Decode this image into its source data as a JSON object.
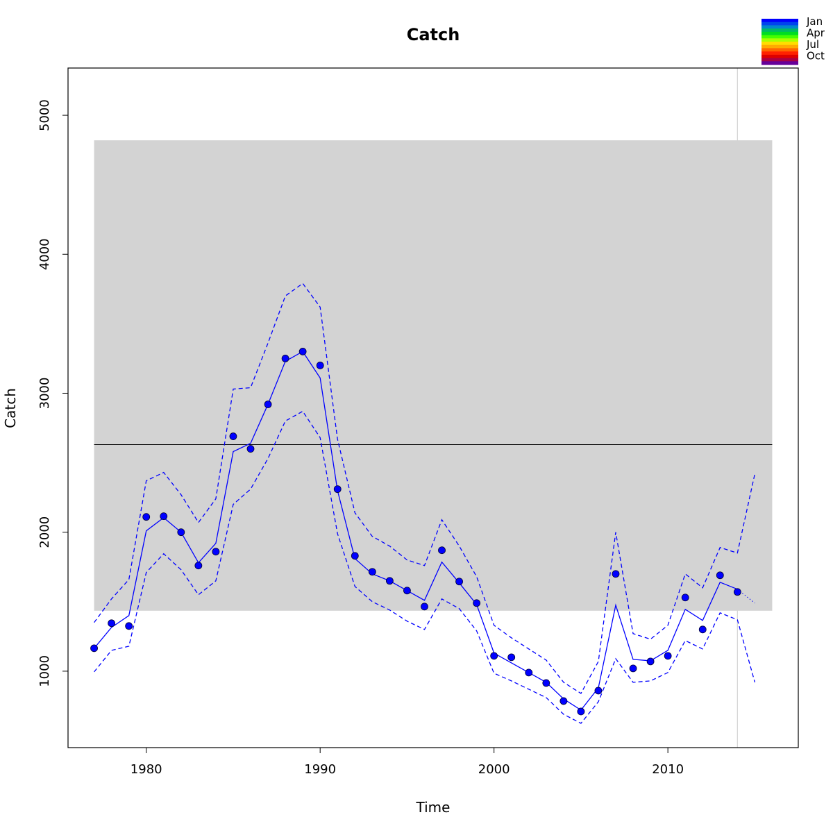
{
  "chart_data": {
    "type": "line",
    "title": "Catch",
    "xlabel": "Time",
    "ylabel": "Catch",
    "xlim": [
      1975.5,
      2017.5
    ],
    "ylim": [
      450,
      5340
    ],
    "x_ticks": [
      1980,
      1990,
      2000,
      2010
    ],
    "y_ticks": [
      1000,
      2000,
      3000,
      4000,
      5000
    ],
    "grid": false,
    "reference_band": {
      "x_range": [
        1977,
        2016
      ],
      "y_range": [
        1435,
        4820
      ],
      "color": "#d3d3d3"
    },
    "reference_line": {
      "y": 2630,
      "x_range": [
        1977,
        2016
      ],
      "color": "#000000"
    },
    "vertical_line": {
      "x": 2014,
      "color": "#d3d3d3"
    },
    "series": [
      {
        "kind": "points",
        "color": "#0000ff",
        "x": [
          1977,
          1978,
          1979,
          1980,
          1981,
          1982,
          1983,
          1984,
          1985,
          1986,
          1987,
          1988,
          1989,
          1990,
          1991,
          1992,
          1993,
          1994,
          1995,
          1996,
          1997,
          1998,
          1999,
          2000,
          2001,
          2002,
          2003,
          2004,
          2005,
          2006,
          2007,
          2008,
          2009,
          2010,
          2011,
          2012,
          2013,
          2014
        ],
        "values": [
          1165,
          1345,
          1325,
          2110,
          2115,
          2000,
          1760,
          1860,
          2690,
          2600,
          2920,
          3250,
          3300,
          3200,
          2310,
          1830,
          1715,
          1650,
          1580,
          1465,
          1870,
          1645,
          1490,
          1110,
          1100,
          990,
          915,
          785,
          710,
          860,
          1700,
          1020,
          1070,
          1110,
          1530,
          1300,
          1690,
          1570
        ]
      },
      {
        "kind": "line",
        "color": "#0000ff",
        "x": [
          1977,
          1978,
          1979,
          1980,
          1981,
          1982,
          1983,
          1984,
          1985,
          1986,
          1987,
          1988,
          1989,
          1990,
          1991,
          1992,
          1993,
          1994,
          1995,
          1996,
          1997,
          1998,
          1999,
          2000,
          2001,
          2002,
          2003,
          2004,
          2005,
          2006,
          2007,
          2008,
          2009,
          2010,
          2011,
          2012,
          2013,
          2014
        ],
        "values": [
          1165,
          1315,
          1400,
          2010,
          2105,
          2000,
          1780,
          1920,
          2580,
          2640,
          2920,
          3230,
          3300,
          3110,
          2300,
          1810,
          1700,
          1650,
          1580,
          1510,
          1785,
          1635,
          1480,
          1130,
          1060,
          990,
          920,
          800,
          720,
          880,
          1475,
          1085,
          1075,
          1150,
          1445,
          1365,
          1640,
          1590
        ]
      },
      {
        "kind": "line",
        "color": "#0000ff",
        "dash": "dotted",
        "x": [
          2014,
          2015
        ],
        "values": [
          1590,
          1490
        ]
      },
      {
        "kind": "line",
        "color": "#0000ff",
        "dash": "dashed",
        "x": [
          1977,
          1978,
          1979,
          1980,
          1981,
          1982,
          1983,
          1984,
          1985,
          1986,
          1987,
          1988,
          1989,
          1990,
          1991,
          1992,
          1993,
          1994,
          1995,
          1996,
          1997,
          1998,
          1999,
          2000,
          2001,
          2002,
          2003,
          2004,
          2005,
          2006,
          2007,
          2008,
          2009,
          2010,
          2011,
          2012,
          2013,
          2014,
          2015
        ],
        "values": [
          1350,
          1520,
          1660,
          2370,
          2430,
          2270,
          2070,
          2240,
          3030,
          3040,
          3360,
          3700,
          3790,
          3620,
          2670,
          2140,
          1970,
          1900,
          1800,
          1760,
          2090,
          1900,
          1680,
          1330,
          1240,
          1160,
          1080,
          920,
          840,
          1070,
          2000,
          1270,
          1230,
          1330,
          1700,
          1600,
          1890,
          1850,
          2420
        ]
      },
      {
        "kind": "line",
        "color": "#0000ff",
        "dash": "dashed",
        "x": [
          1977,
          1978,
          1979,
          1980,
          1981,
          1982,
          1983,
          1984,
          1985,
          1986,
          1987,
          1988,
          1989,
          1990,
          1991,
          1992,
          1993,
          1994,
          1995,
          1996,
          1997,
          1998,
          1999,
          2000,
          2001,
          2002,
          2003,
          2004,
          2005,
          2006,
          2007,
          2008,
          2009,
          2010,
          2011,
          2012,
          2013,
          2014,
          2015
        ],
        "values": [
          995,
          1150,
          1180,
          1710,
          1845,
          1730,
          1550,
          1650,
          2200,
          2310,
          2530,
          2800,
          2870,
          2680,
          1990,
          1610,
          1500,
          1440,
          1360,
          1300,
          1520,
          1450,
          1290,
          985,
          930,
          870,
          810,
          690,
          625,
          780,
          1090,
          920,
          930,
          990,
          1220,
          1160,
          1420,
          1370,
          920
        ]
      }
    ],
    "legend": {
      "position": "top-right",
      "labels": [
        "Jan",
        "Apr",
        "Jul",
        "Oct"
      ],
      "gradient_colors": [
        "#0000ff",
        "#0044ee",
        "#0088cc",
        "#00bb66",
        "#00dd22",
        "#44ff00",
        "#aaff00",
        "#ffdd00",
        "#ffaa00",
        "#ff6600",
        "#ff2200",
        "#dd0000",
        "#aa0044",
        "#660099"
      ]
    }
  }
}
